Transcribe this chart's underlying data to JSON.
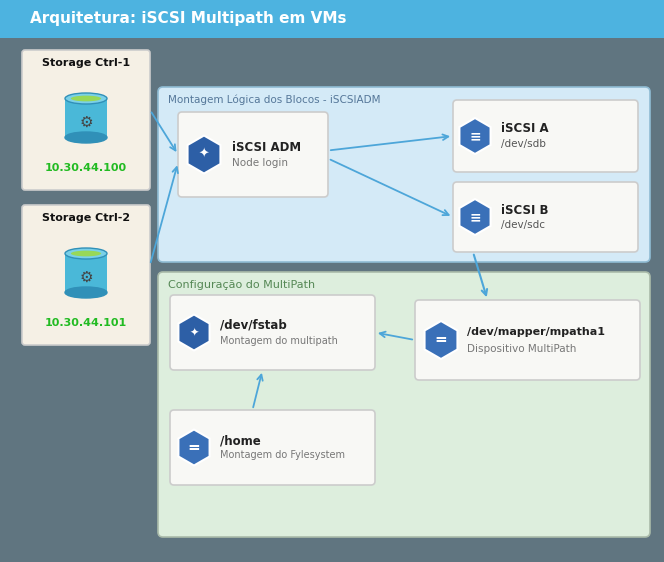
{
  "title": "Arquitetura: iSCSI Multipath em VMs",
  "title_bg": "#4db3e0",
  "title_color": "white",
  "bg_color": "#607580",
  "storage_box_bg": "#f5f0e5",
  "storage_box_border": "#cccccc",
  "montagem_bg": "#d4eaf7",
  "montagem_border": "#90bcd4",
  "montagem_label": "Montagem Lógica dos Blocos - iSCSIADM",
  "config_bg": "#ddeedd",
  "config_border": "#aabbaa",
  "config_label": "Configuração do MultiPath",
  "node_bg": "#f8f8f5",
  "node_border": "#bbbbbb",
  "icon_dark_blue": "#2d5fa6",
  "icon_mid_blue": "#3a70b8",
  "arrow_color": "#4da6d9",
  "ip_color": "#22bb22",
  "storage1_title": "Storage Ctrl-1",
  "storage1_ip": "10.30.44.100",
  "storage2_title": "Storage Ctrl-2",
  "storage2_ip": "10.30.44.101",
  "adm_line1": "iSCSI ADM",
  "adm_line2": "Node login",
  "iscsi_a_line1": "iSCSI A",
  "iscsi_a_line2": "/dev/sdb",
  "iscsi_b_line1": "iSCSI B",
  "iscsi_b_line2": "/dev/sdc",
  "fstab_line1": "/dev/fstab",
  "fstab_line2": "Montagem do multipath",
  "mapper_line1": "/dev/mapper/mpatha1",
  "mapper_line2": "Dispositivo MultiPath",
  "home_line1": "/home",
  "home_line2": "Montagem do Fylesystem"
}
